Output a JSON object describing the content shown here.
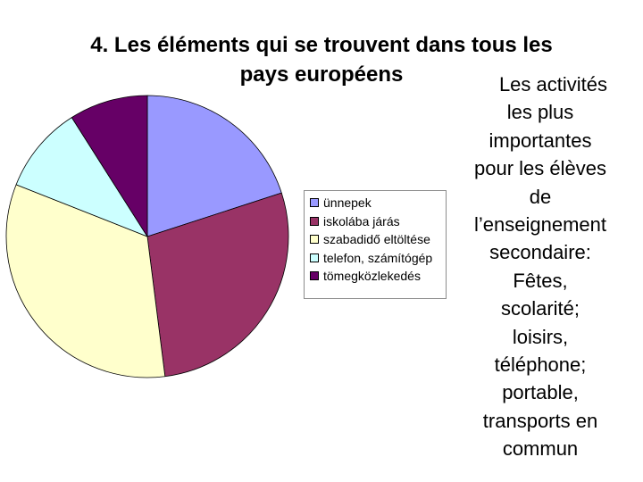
{
  "title": {
    "line1": "4. Les éléments qui se trouvent dans tous les",
    "line2": "pays européens"
  },
  "chart_data": {
    "type": "pie",
    "title": "",
    "slices": [
      {
        "label": "ünnepek",
        "value": 20,
        "color": "#9999ff"
      },
      {
        "label": "iskolába járás",
        "value": 28,
        "color": "#993366"
      },
      {
        "label": "szabadidő eltöltése",
        "value": 33,
        "color": "#ffffcc"
      },
      {
        "label": "telefon, számítógép",
        "value": 10,
        "color": "#ccffff"
      },
      {
        "label": "tömegközlekedés",
        "value": 9,
        "color": "#660066"
      }
    ],
    "legend": "right"
  },
  "side_text": {
    "lines": [
      "Les activités",
      "les plus",
      "importantes",
      "pour les élèves",
      "de",
      "l’enseignement",
      "secondaire:",
      "Fêtes,",
      "scolarité;",
      "loisirs,",
      "téléphone;",
      "portable,",
      "transports en",
      "commun"
    ]
  }
}
